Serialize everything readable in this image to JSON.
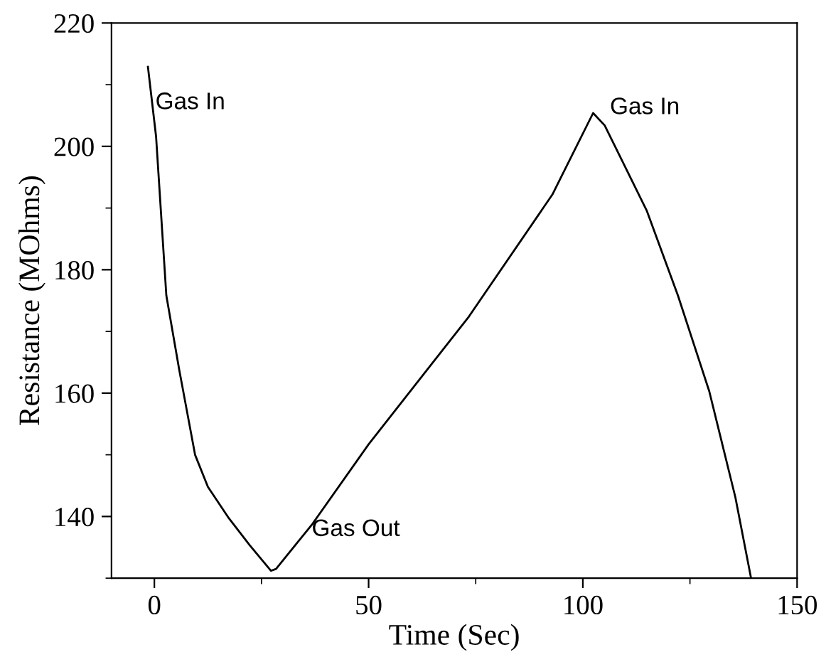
{
  "chart_data": {
    "type": "line",
    "xlabel": "Time (Sec)",
    "ylabel": "Resistance (MOhms)",
    "x": [
      -1.5,
      0.4,
      2.8,
      5.8,
      9.5,
      12.5,
      17.4,
      22.3,
      27.2,
      28.4,
      36.9,
      50,
      73.4,
      92.9,
      102.4,
      105.1,
      114.9,
      122.2,
      129.5,
      135.6,
      139.2
    ],
    "series": [
      {
        "color": "#000000",
        "values": [
          212.9,
          201.6,
          175.8,
          163.8,
          150,
          144.8,
          139.7,
          135.3,
          131.2,
          131.5,
          138.8,
          151.7,
          172.4,
          192.2,
          205.4,
          203.4,
          189.6,
          175.8,
          160.3,
          143.1,
          130.2
        ]
      }
    ],
    "xlim": [
      -10,
      150
    ],
    "ylim": [
      130,
      220
    ],
    "xticks": [
      0,
      50,
      100,
      150
    ],
    "yticks": [
      140,
      160,
      180,
      200,
      220
    ],
    "grid": false,
    "legend": false,
    "marker": "none",
    "line_style": "solid",
    "annotations": [
      "Gas In",
      "Gas In",
      "Gas Out"
    ]
  }
}
